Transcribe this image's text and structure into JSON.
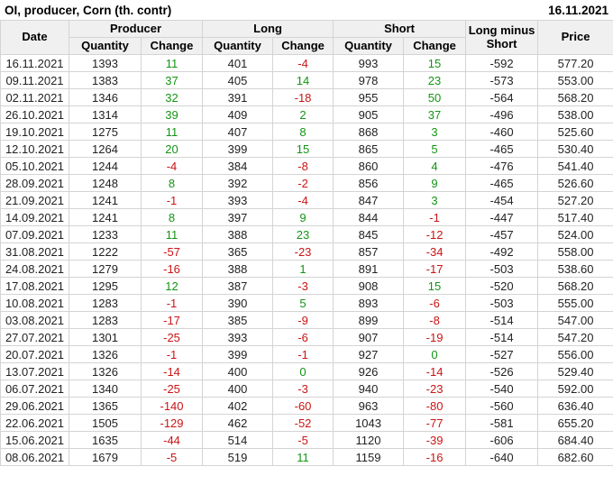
{
  "header": {
    "title": "OI, producer, Corn (th. contr)",
    "date": "16.11.2021"
  },
  "table": {
    "columns": {
      "date": "Date",
      "producer": "Producer",
      "long": "Long",
      "short": "Short",
      "long_minus_short": "Long minus Short",
      "price": "Price",
      "quantity": "Quantity",
      "change": "Change"
    },
    "change_column_indexes": [
      2,
      4,
      6
    ],
    "rows": [
      [
        "16.11.2021",
        "1393",
        "11",
        "401",
        "-4",
        "993",
        "15",
        "-592",
        "577.20"
      ],
      [
        "09.11.2021",
        "1383",
        "37",
        "405",
        "14",
        "978",
        "23",
        "-573",
        "553.00"
      ],
      [
        "02.11.2021",
        "1346",
        "32",
        "391",
        "-18",
        "955",
        "50",
        "-564",
        "568.20"
      ],
      [
        "26.10.2021",
        "1314",
        "39",
        "409",
        "2",
        "905",
        "37",
        "-496",
        "538.00"
      ],
      [
        "19.10.2021",
        "1275",
        "11",
        "407",
        "8",
        "868",
        "3",
        "-460",
        "525.60"
      ],
      [
        "12.10.2021",
        "1264",
        "20",
        "399",
        "15",
        "865",
        "5",
        "-465",
        "530.40"
      ],
      [
        "05.10.2021",
        "1244",
        "-4",
        "384",
        "-8",
        "860",
        "4",
        "-476",
        "541.40"
      ],
      [
        "28.09.2021",
        "1248",
        "8",
        "392",
        "-2",
        "856",
        "9",
        "-465",
        "526.60"
      ],
      [
        "21.09.2021",
        "1241",
        "-1",
        "393",
        "-4",
        "847",
        "3",
        "-454",
        "527.20"
      ],
      [
        "14.09.2021",
        "1241",
        "8",
        "397",
        "9",
        "844",
        "-1",
        "-447",
        "517.40"
      ],
      [
        "07.09.2021",
        "1233",
        "11",
        "388",
        "23",
        "845",
        "-12",
        "-457",
        "524.00"
      ],
      [
        "31.08.2021",
        "1222",
        "-57",
        "365",
        "-23",
        "857",
        "-34",
        "-492",
        "558.00"
      ],
      [
        "24.08.2021",
        "1279",
        "-16",
        "388",
        "1",
        "891",
        "-17",
        "-503",
        "538.60"
      ],
      [
        "17.08.2021",
        "1295",
        "12",
        "387",
        "-3",
        "908",
        "15",
        "-520",
        "568.20"
      ],
      [
        "10.08.2021",
        "1283",
        "-1",
        "390",
        "5",
        "893",
        "-6",
        "-503",
        "555.00"
      ],
      [
        "03.08.2021",
        "1283",
        "-17",
        "385",
        "-9",
        "899",
        "-8",
        "-514",
        "547.00"
      ],
      [
        "27.07.2021",
        "1301",
        "-25",
        "393",
        "-6",
        "907",
        "-19",
        "-514",
        "547.20"
      ],
      [
        "20.07.2021",
        "1326",
        "-1",
        "399",
        "-1",
        "927",
        "0",
        "-527",
        "556.00"
      ],
      [
        "13.07.2021",
        "1326",
        "-14",
        "400",
        "0",
        "926",
        "-14",
        "-526",
        "529.40"
      ],
      [
        "06.07.2021",
        "1340",
        "-25",
        "400",
        "-3",
        "940",
        "-23",
        "-540",
        "592.00"
      ],
      [
        "29.06.2021",
        "1365",
        "-140",
        "402",
        "-60",
        "963",
        "-80",
        "-560",
        "636.40"
      ],
      [
        "22.06.2021",
        "1505",
        "-129",
        "462",
        "-52",
        "1043",
        "-77",
        "-581",
        "655.20"
      ],
      [
        "15.06.2021",
        "1635",
        "-44",
        "514",
        "-5",
        "1120",
        "-39",
        "-606",
        "684.40"
      ],
      [
        "08.06.2021",
        "1679",
        "-5",
        "519",
        "11",
        "1159",
        "-16",
        "-640",
        "682.60"
      ]
    ]
  },
  "colors": {
    "positive_change": "#149414",
    "negative_change": "#cc1414",
    "header_background": "#f0f0f0",
    "border": "#d4d4d4",
    "text": "#222222"
  }
}
